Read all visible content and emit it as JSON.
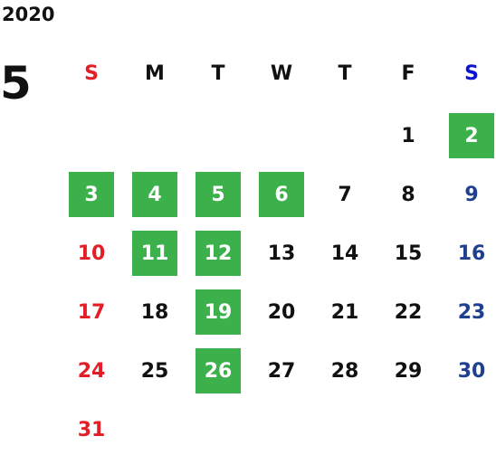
{
  "year": "2020",
  "month": "5",
  "weekdays": [
    "S",
    "M",
    "T",
    "W",
    "T",
    "F",
    "S"
  ],
  "weeks": [
    [
      null,
      null,
      null,
      null,
      null,
      {
        "day": "1",
        "highlight": false
      },
      {
        "day": "2",
        "highlight": true
      }
    ],
    [
      {
        "day": "3",
        "highlight": true
      },
      {
        "day": "4",
        "highlight": true
      },
      {
        "day": "5",
        "highlight": true
      },
      {
        "day": "6",
        "highlight": true
      },
      {
        "day": "7",
        "highlight": false
      },
      {
        "day": "8",
        "highlight": false
      },
      {
        "day": "9",
        "highlight": false
      }
    ],
    [
      {
        "day": "10",
        "highlight": false
      },
      {
        "day": "11",
        "highlight": true
      },
      {
        "day": "12",
        "highlight": true
      },
      {
        "day": "13",
        "highlight": false
      },
      {
        "day": "14",
        "highlight": false
      },
      {
        "day": "15",
        "highlight": false
      },
      {
        "day": "16",
        "highlight": false
      }
    ],
    [
      {
        "day": "17",
        "highlight": false
      },
      {
        "day": "18",
        "highlight": false
      },
      {
        "day": "19",
        "highlight": true
      },
      {
        "day": "20",
        "highlight": false
      },
      {
        "day": "21",
        "highlight": false
      },
      {
        "day": "22",
        "highlight": false
      },
      {
        "day": "23",
        "highlight": false
      }
    ],
    [
      {
        "day": "24",
        "highlight": false
      },
      {
        "day": "25",
        "highlight": false
      },
      {
        "day": "26",
        "highlight": true
      },
      {
        "day": "27",
        "highlight": false
      },
      {
        "day": "28",
        "highlight": false
      },
      {
        "day": "29",
        "highlight": false
      },
      {
        "day": "30",
        "highlight": false
      }
    ],
    [
      {
        "day": "31",
        "highlight": false
      },
      null,
      null,
      null,
      null,
      null,
      null
    ]
  ]
}
